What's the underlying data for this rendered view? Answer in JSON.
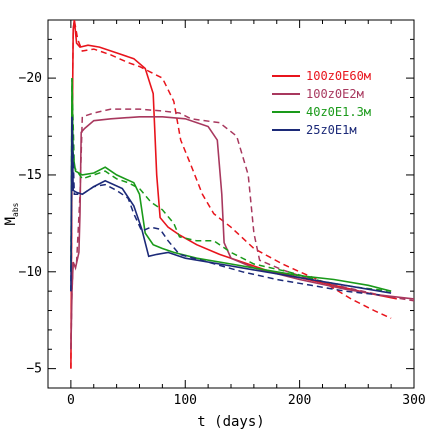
{
  "chart_data": {
    "type": "line",
    "xlabel": "t (days)",
    "ylabel": "M",
    "ylabel_subscript": "abs",
    "xlim": [
      -20,
      300
    ],
    "ylim": [
      -4,
      -23
    ],
    "y_inverted": true,
    "x_ticks": [
      0,
      100,
      200,
      300
    ],
    "x_tick_labels": [
      "0",
      "100",
      "200",
      "300"
    ],
    "y_ticks": [
      -5,
      -10,
      -15,
      -20
    ],
    "y_tick_labels": [
      "−5",
      "−10",
      "−15",
      "−20"
    ],
    "grid": false,
    "legend_position": "top-right",
    "series": [
      {
        "name": "100z0E60м",
        "color": "#e8141c",
        "solid": [
          [
            0,
            -5
          ],
          [
            1,
            -16
          ],
          [
            2,
            -22.5
          ],
          [
            3,
            -23
          ],
          [
            5,
            -21.8
          ],
          [
            8,
            -21.6
          ],
          [
            15,
            -21.7
          ],
          [
            25,
            -21.6
          ],
          [
            40,
            -21.3
          ],
          [
            55,
            -21.0
          ],
          [
            65,
            -20.5
          ],
          [
            72,
            -19.2
          ],
          [
            75,
            -15.0
          ],
          [
            78,
            -12.8
          ],
          [
            85,
            -12.3
          ],
          [
            95,
            -11.9
          ],
          [
            110,
            -11.4
          ],
          [
            130,
            -10.9
          ],
          [
            150,
            -10.5
          ],
          [
            170,
            -10.1
          ],
          [
            200,
            -9.7
          ],
          [
            230,
            -9.3
          ],
          [
            260,
            -8.9
          ],
          [
            285,
            -8.6
          ]
        ],
        "dashed": [
          [
            0,
            -5
          ],
          [
            1,
            -16
          ],
          [
            2,
            -22.5
          ],
          [
            3,
            -23
          ],
          [
            6,
            -22.0
          ],
          [
            10,
            -21.4
          ],
          [
            20,
            -21.5
          ],
          [
            35,
            -21.2
          ],
          [
            50,
            -20.8
          ],
          [
            60,
            -20.6
          ],
          [
            70,
            -20.3
          ],
          [
            80,
            -20.0
          ],
          [
            90,
            -18.8
          ],
          [
            96,
            -16.8
          ],
          [
            105,
            -15.5
          ],
          [
            115,
            -14.0
          ],
          [
            125,
            -13.0
          ],
          [
            140,
            -12.3
          ],
          [
            160,
            -11.2
          ],
          [
            185,
            -10.4
          ],
          [
            200,
            -10.0
          ],
          [
            220,
            -9.5
          ],
          [
            245,
            -8.6
          ],
          [
            265,
            -8.0
          ],
          [
            280,
            -7.6
          ]
        ]
      },
      {
        "name": "100z0E2м",
        "color": "#a8385e",
        "solid": [
          [
            0,
            -6
          ],
          [
            1,
            -9
          ],
          [
            2,
            -10.5
          ],
          [
            4,
            -10.2
          ],
          [
            7,
            -11.0
          ],
          [
            8,
            -13
          ],
          [
            9,
            -17.2
          ],
          [
            12,
            -17.4
          ],
          [
            20,
            -17.8
          ],
          [
            35,
            -17.9
          ],
          [
            60,
            -18.0
          ],
          [
            80,
            -18.0
          ],
          [
            100,
            -17.9
          ],
          [
            120,
            -17.5
          ],
          [
            128,
            -16.8
          ],
          [
            132,
            -14.0
          ],
          [
            134,
            -11.5
          ],
          [
            140,
            -10.7
          ],
          [
            160,
            -10.2
          ],
          [
            200,
            -9.6
          ],
          [
            240,
            -9.1
          ],
          [
            270,
            -8.8
          ],
          [
            300,
            -8.6
          ]
        ],
        "dashed": [
          [
            0,
            -6
          ],
          [
            1,
            -9
          ],
          [
            2,
            -10.5
          ],
          [
            5,
            -10.5
          ],
          [
            8,
            -14
          ],
          [
            10,
            -18.0
          ],
          [
            20,
            -18.2
          ],
          [
            35,
            -18.4
          ],
          [
            60,
            -18.4
          ],
          [
            80,
            -18.3
          ],
          [
            95,
            -18.2
          ],
          [
            105,
            -17.9
          ],
          [
            130,
            -17.7
          ],
          [
            145,
            -17.0
          ],
          [
            155,
            -15.0
          ],
          [
            160,
            -12.0
          ],
          [
            165,
            -10.6
          ],
          [
            185,
            -10.1
          ],
          [
            210,
            -9.6
          ],
          [
            240,
            -9.2
          ],
          [
            270,
            -8.8
          ],
          [
            300,
            -8.5
          ]
        ]
      },
      {
        "name": "40z0E1.3м",
        "color": "#1a9a1a",
        "solid": [
          [
            0,
            -10
          ],
          [
            1,
            -20
          ],
          [
            2,
            -16
          ],
          [
            4,
            -15.2
          ],
          [
            10,
            -15.0
          ],
          [
            20,
            -15.1
          ],
          [
            30,
            -15.4
          ],
          [
            40,
            -15.0
          ],
          [
            55,
            -14.6
          ],
          [
            60,
            -14.0
          ],
          [
            65,
            -12.0
          ],
          [
            72,
            -11.4
          ],
          [
            80,
            -11.2
          ],
          [
            90,
            -11.0
          ],
          [
            110,
            -10.7
          ],
          [
            140,
            -10.4
          ],
          [
            170,
            -10.1
          ],
          [
            200,
            -9.8
          ],
          [
            230,
            -9.6
          ],
          [
            260,
            -9.3
          ],
          [
            280,
            -9.0
          ]
        ],
        "dashed": [
          [
            0,
            -10
          ],
          [
            1,
            -20
          ],
          [
            3,
            -15.4
          ],
          [
            10,
            -14.8
          ],
          [
            20,
            -15.0
          ],
          [
            30,
            -15.2
          ],
          [
            40,
            -14.8
          ],
          [
            50,
            -14.6
          ],
          [
            60,
            -14.3
          ],
          [
            70,
            -13.6
          ],
          [
            80,
            -13.2
          ],
          [
            90,
            -12.5
          ],
          [
            95,
            -11.8
          ],
          [
            110,
            -11.6
          ],
          [
            125,
            -11.6
          ],
          [
            140,
            -11.0
          ],
          [
            160,
            -10.4
          ],
          [
            190,
            -10.0
          ],
          [
            220,
            -9.5
          ],
          [
            250,
            -9.2
          ],
          [
            280,
            -9.0
          ]
        ]
      },
      {
        "name": "25z0E1м",
        "color": "#1c2a78",
        "solid": [
          [
            0,
            -9
          ],
          [
            1,
            -18
          ],
          [
            2,
            -14.2
          ],
          [
            5,
            -14.1
          ],
          [
            10,
            -14.0
          ],
          [
            20,
            -14.4
          ],
          [
            30,
            -14.7
          ],
          [
            45,
            -14.3
          ],
          [
            55,
            -13.4
          ],
          [
            62,
            -12.2
          ],
          [
            68,
            -10.8
          ],
          [
            75,
            -10.9
          ],
          [
            85,
            -11.0
          ],
          [
            100,
            -10.7
          ],
          [
            130,
            -10.4
          ],
          [
            160,
            -10.1
          ],
          [
            190,
            -9.8
          ],
          [
            220,
            -9.5
          ],
          [
            250,
            -9.2
          ],
          [
            280,
            -8.9
          ]
        ],
        "dashed": [
          [
            0,
            -9
          ],
          [
            1,
            -18
          ],
          [
            3,
            -14.0
          ],
          [
            10,
            -14.0
          ],
          [
            20,
            -14.4
          ],
          [
            30,
            -14.5
          ],
          [
            40,
            -14.2
          ],
          [
            50,
            -13.8
          ],
          [
            55,
            -13.0
          ],
          [
            62,
            -12.1
          ],
          [
            70,
            -12.3
          ],
          [
            78,
            -12.2
          ],
          [
            85,
            -11.6
          ],
          [
            95,
            -10.9
          ],
          [
            120,
            -10.5
          ],
          [
            150,
            -10.0
          ],
          [
            180,
            -9.6
          ],
          [
            210,
            -9.3
          ],
          [
            240,
            -9.0
          ],
          [
            270,
            -8.8
          ]
        ]
      }
    ]
  }
}
